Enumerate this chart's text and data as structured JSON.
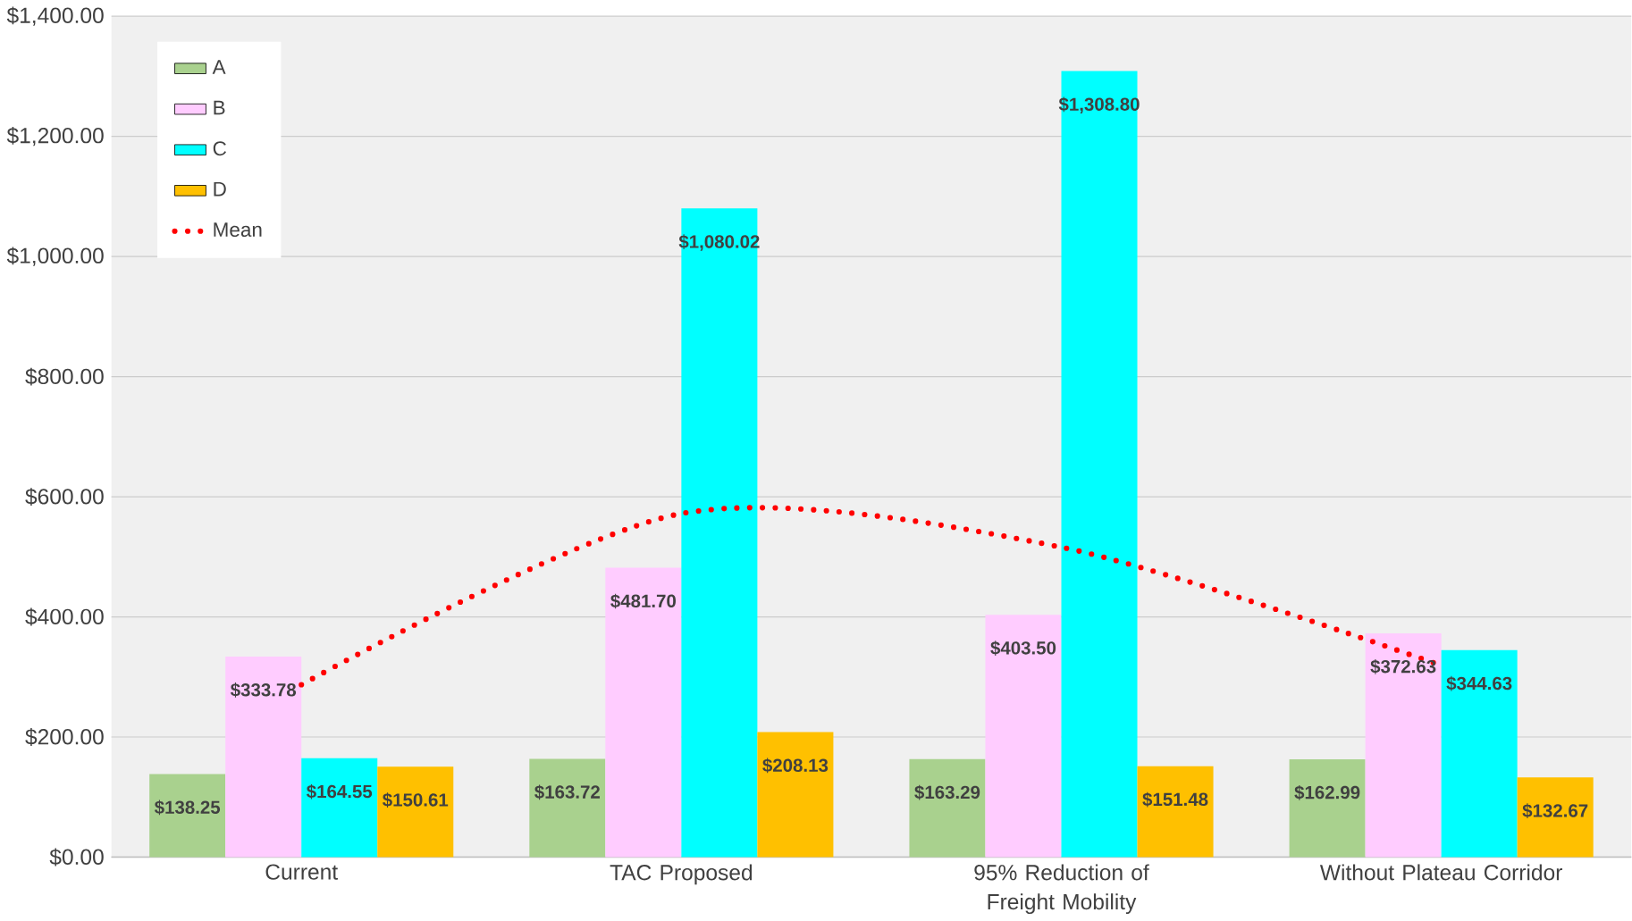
{
  "chart_data": {
    "type": "bar",
    "categories": [
      "Current",
      "TAC Proposed",
      "95% Reduction of Freight Mobility",
      "Without Plateau Corridor"
    ],
    "series": [
      {
        "name": "A",
        "color": "#a9d18e",
        "values": [
          138.25,
          163.72,
          163.29,
          162.99
        ],
        "value_labels": [
          "$138.25",
          "$163.72",
          "$163.29",
          "$162.99"
        ]
      },
      {
        "name": "B",
        "color": "#ffccff",
        "values": [
          333.78,
          481.7,
          403.5,
          372.63
        ],
        "value_labels": [
          "$333.78",
          "$481.70",
          "$403.50",
          "$372.63"
        ]
      },
      {
        "name": "C",
        "color": "#00ffff",
        "values": [
          164.55,
          1080.02,
          1308.8,
          344.63
        ],
        "value_labels": [
          "$164.55",
          "$1,080.02",
          "$1,308.80",
          "$344.63"
        ]
      },
      {
        "name": "D",
        "color": "#ffc000",
        "values": [
          150.61,
          208.13,
          151.48,
          132.67
        ],
        "value_labels": [
          "$150.61",
          "$208.13",
          "$151.48",
          "$132.67"
        ]
      },
      {
        "name": "Mean",
        "type": "line",
        "color": "#ff0000",
        "line_style": "dotted",
        "values": [
          287,
          572,
          516,
          319
        ]
      }
    ],
    "ylim": [
      0,
      1400
    ],
    "yticks": [
      {
        "value": 0,
        "label": "$0.00"
      },
      {
        "value": 200,
        "label": "$200.00"
      },
      {
        "value": 400,
        "label": "$400.00"
      },
      {
        "value": 600,
        "label": "$600.00"
      },
      {
        "value": 800,
        "label": "$800.00"
      },
      {
        "value": 1000,
        "label": "$1,000.00"
      },
      {
        "value": 1200,
        "label": "$1,200.00"
      },
      {
        "value": 1400,
        "label": "$1,400.00"
      }
    ],
    "grid": "y",
    "legend": "top left"
  }
}
